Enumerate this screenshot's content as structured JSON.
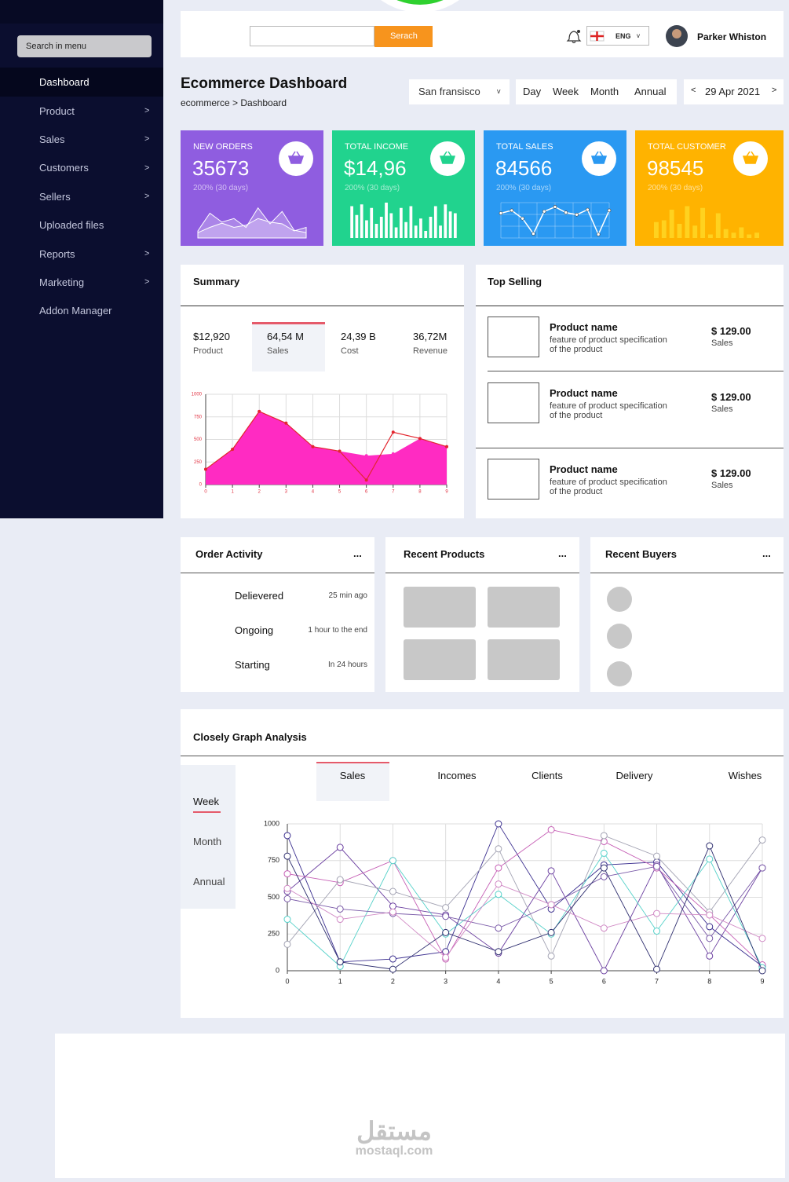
{
  "sidebar": {
    "search": "Search in menu",
    "active_item": 0,
    "items": [
      {
        "label": "Dashboard"
      },
      {
        "label": "Product",
        "arrow": ">"
      },
      {
        "label": "Sales",
        "arrow": ">"
      },
      {
        "label": "Customers",
        "arrow": ">"
      },
      {
        "label": "Sellers",
        "arrow": ">"
      },
      {
        "label": "Uploaded files"
      },
      {
        "label": "Reports",
        "arrow": ">"
      },
      {
        "label": "Marketing",
        "arrow": ">"
      },
      {
        "label": "Addon Manager"
      }
    ]
  },
  "header": {
    "search_button": "Serach",
    "language": "ENG",
    "dropdown": "v",
    "user": "Parker Whiston"
  },
  "page": {
    "title": "Ecommerce Dashboard",
    "breadcrumb": "ecommerce > Dashboard",
    "city": "San fransisco",
    "city_dropdown": "v",
    "periods": [
      "Day",
      "Week",
      "Month",
      "Annual"
    ],
    "prev": "<",
    "date": "29 Apr 2021",
    "next": ">"
  },
  "stats": [
    {
      "label": "NEW ORDERS",
      "value": "35673",
      "change": "200% (30 days)",
      "color": "#8f5de0",
      "spark": {
        "type": "area",
        "ylim": [
          0,
          100
        ],
        "series": [
          {
            "color": "#ffffff",
            "values": [
              20,
              70,
              45,
              55,
              30,
              85,
              40,
              75,
              22,
              15
            ]
          },
          {
            "color": "#ffffff",
            "values": [
              15,
              30,
              42,
              30,
              36,
              55,
              45,
              40,
              20,
              30
            ]
          }
        ]
      }
    },
    {
      "label": "TOTAL INCOME",
      "value": "$14,96",
      "change": "200% (30 days)",
      "color": "#21d38e",
      "spark": {
        "type": "bar",
        "ylim": [
          0,
          100
        ],
        "series": [
          {
            "color": "#ffffff",
            "values": [
              90,
              65,
              95,
              50,
              85,
              40,
              60,
              100,
              70,
              30,
              85,
              45,
              90,
              35,
              55,
              20,
              60,
              90,
              35,
              95,
              75,
              70
            ]
          }
        ]
      }
    },
    {
      "label": "TOTAL SALES",
      "value": "84566",
      "change": "200% (30 days)",
      "color": "#2a99f2",
      "spark": {
        "type": "line",
        "ylim": [
          0,
          100
        ],
        "grid": true,
        "series": [
          {
            "color": "#ffffff",
            "values": [
              70,
              78,
              55,
              12,
              75,
              88,
              72,
              66,
              80,
              10,
              78
            ]
          }
        ]
      }
    },
    {
      "label": "TOTAL CUSTOMER",
      "value": "98545",
      "change": "200% (30 days)",
      "color": "#ffb300",
      "spark": {
        "type": "bar",
        "ylim": [
          0,
          100
        ],
        "series": [
          {
            "color": "#ffd21f",
            "values": [
              45,
              50,
              80,
              40,
              90,
              35,
              85,
              10,
              70,
              25,
              15,
              30,
              10,
              15
            ]
          }
        ]
      }
    }
  ],
  "summary": {
    "title": "Summary",
    "selected_metric": 1,
    "metrics": [
      {
        "value": "$12,920",
        "label": "Product"
      },
      {
        "value": "64,54 M",
        "label": "Sales"
      },
      {
        "value": "24,39 B",
        "label": "Cost"
      },
      {
        "value": "36,72M",
        "label": "Revenue"
      }
    ],
    "chart": {
      "type": "area",
      "x": [
        0,
        1,
        2,
        3,
        4,
        5,
        6,
        7,
        8,
        9
      ],
      "xlim": [
        0,
        9
      ],
      "xticks": [
        0,
        1,
        2,
        3,
        4,
        5,
        6,
        7,
        8,
        9
      ],
      "ylim": [
        0,
        1000
      ],
      "yticks": [
        0,
        250,
        500,
        750,
        1000
      ],
      "grid": true,
      "series": [
        {
          "color": "#ff2bc2",
          "fill": true,
          "values": [
            170,
            390,
            810,
            680,
            420,
            370,
            320,
            340,
            510,
            420
          ]
        },
        {
          "color": "#e3262e",
          "values": [
            170,
            390,
            810,
            680,
            420,
            370,
            50,
            580,
            510,
            420
          ]
        }
      ]
    }
  },
  "top_selling": {
    "title": "Top Selling",
    "products": [
      {
        "name": "Product name",
        "description": "feature of product specification of the product",
        "price": "$ 129.00",
        "label": "Sales"
      },
      {
        "name": "Product name",
        "description": "feature of product specification of the product",
        "price": "$ 129.00",
        "label": "Sales"
      },
      {
        "name": "Product name",
        "description": "feature of product specification of the product",
        "price": "$ 129.00",
        "label": "Sales"
      }
    ]
  },
  "order_activity": {
    "title": "Order Activity",
    "menu": "...",
    "rows": [
      {
        "status": "Delievered",
        "time": "25 min ago"
      },
      {
        "status": "Ongoing",
        "time": "1 hour to the end"
      },
      {
        "status": "Starting",
        "time": "In 24 hours"
      }
    ]
  },
  "recent_products": {
    "title": "Recent Products",
    "menu": "..."
  },
  "recent_buyers": {
    "title": "Recent Buyers",
    "menu": "..."
  },
  "analysis": {
    "title": "Closely Graph Analysis",
    "selected_range": 0,
    "ranges": [
      "Week",
      "Month",
      "Annual"
    ],
    "selected_tab": 0,
    "tabs": [
      "Sales",
      "Incomes",
      "Clients",
      "Delivery",
      "Wishes"
    ],
    "chart": {
      "type": "line",
      "x": [
        0,
        1,
        2,
        3,
        4,
        5,
        6,
        7,
        8,
        9
      ],
      "xlim": [
        0,
        9
      ],
      "xticks": [
        0,
        1,
        2,
        3,
        4,
        5,
        6,
        7,
        8,
        9
      ],
      "ylim": [
        0,
        1000
      ],
      "yticks": [
        0,
        250,
        500,
        750,
        1000
      ],
      "grid": true,
      "series": [
        {
          "color": "#3b2f8f",
          "values": [
            920,
            60,
            80,
            130,
            1000,
            420,
            720,
            740,
            300,
            30
          ]
        },
        {
          "color": "#6b3fa0",
          "values": [
            540,
            840,
            440,
            380,
            120,
            680,
            0,
            720,
            100,
            700
          ]
        },
        {
          "color": "#c65fb5",
          "values": [
            660,
            600,
            750,
            80,
            700,
            960,
            880,
            700,
            380,
            40
          ]
        },
        {
          "color": "#54d1c9",
          "values": [
            350,
            30,
            750,
            250,
            520,
            250,
            800,
            270,
            760,
            20
          ]
        },
        {
          "color": "#a3a3b3",
          "values": [
            180,
            620,
            540,
            430,
            830,
            100,
            920,
            780,
            400,
            890
          ]
        },
        {
          "color": "#7a5aa8",
          "values": [
            490,
            420,
            390,
            370,
            290,
            450,
            640,
            710,
            220,
            700
          ]
        },
        {
          "color": "#d088c4",
          "values": [
            560,
            350,
            400,
            90,
            590,
            450,
            290,
            390,
            380,
            220
          ]
        },
        {
          "color": "#2d2d6e",
          "values": [
            780,
            60,
            10,
            260,
            130,
            260,
            700,
            10,
            850,
            0
          ]
        }
      ]
    }
  },
  "watermark": {
    "arabic": "مستقل",
    "latin": "mostaql.com"
  }
}
